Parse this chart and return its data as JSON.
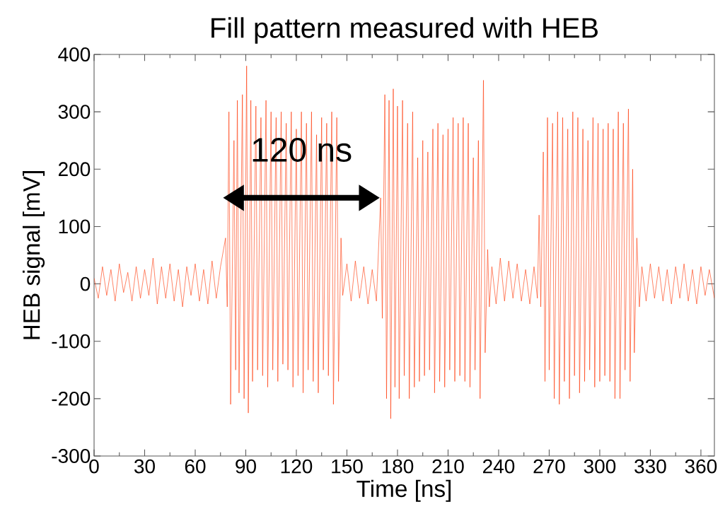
{
  "chart_data": {
    "type": "line",
    "title": "Fill pattern measured with HEB",
    "xlabel": "Time [ns]",
    "ylabel": "HEB signal [mV]",
    "annotations": [
      {
        "text": "120 ns",
        "x": 123,
        "y": 150
      }
    ],
    "xlim": [
      0,
      368
    ],
    "ylim": [
      -300,
      400
    ],
    "xticks": [
      0,
      30,
      60,
      90,
      120,
      150,
      180,
      210,
      240,
      270,
      300,
      330,
      360
    ],
    "yticks": [
      -300,
      -200,
      -100,
      0,
      100,
      200,
      300,
      400
    ],
    "grid": false,
    "marker": "none",
    "line_style": "solid",
    "series": [
      {
        "color": "#ff3300",
        "x": [
          0,
          2.5,
          5,
          7.5,
          10,
          12.5,
          15,
          17.5,
          20,
          22.5,
          25,
          27.5,
          30,
          32.5,
          35,
          37.5,
          40,
          42.5,
          45,
          47.5,
          50,
          52.5,
          55,
          57.5,
          60,
          62.5,
          65,
          67.5,
          70,
          72.5,
          75,
          78,
          79,
          80,
          81,
          83,
          84,
          85,
          86,
          88,
          89,
          90.5,
          91.5,
          93,
          94,
          96,
          97,
          99,
          100,
          102,
          103,
          105,
          106,
          108,
          109,
          111,
          112,
          114,
          115,
          117,
          118,
          120,
          121,
          123,
          124,
          126,
          127,
          129,
          130,
          132,
          133,
          135,
          136,
          138,
          139,
          141,
          142,
          144,
          145,
          146.5,
          147.5,
          150,
          152.5,
          155,
          157.5,
          160,
          162.5,
          165,
          167.5,
          170,
          171,
          172.5,
          173.5,
          175,
          176,
          177.5,
          178.5,
          180,
          181,
          183,
          184,
          186,
          187,
          189,
          190,
          192,
          193,
          195,
          196,
          198,
          199,
          201,
          202,
          204,
          205,
          207,
          208,
          210,
          211,
          213,
          214,
          216,
          217,
          219,
          220,
          222,
          223,
          225,
          226,
          228,
          229,
          231,
          232,
          233.5,
          234.5,
          236,
          238.5,
          241,
          243.5,
          246,
          248.5,
          251,
          253.5,
          256,
          258.5,
          261,
          263,
          264,
          265,
          266.5,
          267.5,
          269,
          270,
          272,
          273,
          275,
          276,
          278,
          279,
          281,
          282,
          284,
          285,
          287,
          288,
          290,
          291,
          293,
          294,
          296,
          297,
          299,
          300,
          302,
          303,
          305,
          306,
          308,
          309,
          311,
          312,
          314,
          315,
          317,
          318,
          319.5,
          320.5,
          322,
          323.5,
          325,
          327.5,
          330,
          332.5,
          335,
          337.5,
          340,
          342.5,
          345,
          347.5,
          350,
          352.5,
          355,
          357.5,
          360,
          362.5,
          365,
          368
        ],
        "values": [
          10,
          -25,
          30,
          -20,
          25,
          -30,
          35,
          -15,
          20,
          -30,
          30,
          -25,
          25,
          -20,
          45,
          -35,
          30,
          -25,
          35,
          -30,
          25,
          -40,
          30,
          -20,
          35,
          -30,
          25,
          -35,
          40,
          -25,
          30,
          80,
          -40,
          300,
          -210,
          250,
          -150,
          320,
          -190,
          330,
          -200,
          380,
          -225,
          320,
          -170,
          310,
          -150,
          290,
          -160,
          320,
          -180,
          300,
          -150,
          290,
          -170,
          300,
          -140,
          280,
          -150,
          300,
          -180,
          270,
          -160,
          300,
          -190,
          280,
          -150,
          300,
          -170,
          260,
          -190,
          290,
          -150,
          280,
          -160,
          300,
          -210,
          290,
          -170,
          80,
          -20,
          35,
          -30,
          40,
          -25,
          30,
          -35,
          25,
          -30,
          150,
          -60,
          330,
          -200,
          320,
          -235,
          340,
          -180,
          310,
          -200,
          320,
          -160,
          280,
          -200,
          300,
          -180,
          220,
          -170,
          250,
          -160,
          230,
          -150,
          270,
          -190,
          280,
          -170,
          260,
          -180,
          270,
          -150,
          290,
          -170,
          280,
          -160,
          290,
          -170,
          280,
          -180,
          220,
          -150,
          250,
          -200,
          355,
          -120,
          60,
          -40,
          30,
          -35,
          45,
          -30,
          40,
          -25,
          35,
          -30,
          25,
          -35,
          30,
          -25,
          120,
          -40,
          230,
          -170,
          290,
          -150,
          280,
          -200,
          300,
          -210,
          290,
          -170,
          270,
          -200,
          300,
          -160,
          290,
          -190,
          270,
          -170,
          250,
          -150,
          290,
          -180,
          280,
          -170,
          270,
          -160,
          280,
          -170,
          270,
          -200,
          300,
          -200,
          280,
          -150,
          305,
          -170,
          200,
          -120,
          80,
          -40,
          30,
          -30,
          35,
          -25,
          30,
          -30,
          25,
          -35,
          30,
          -25,
          35,
          -30,
          25,
          -35,
          30,
          -20,
          25,
          -25
        ]
      }
    ]
  }
}
